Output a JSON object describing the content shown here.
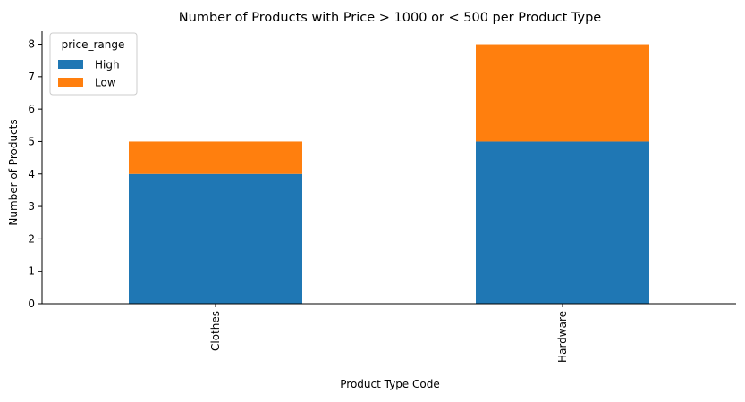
{
  "chart_data": {
    "type": "bar",
    "stacked": true,
    "title": "Number of Products with Price > 1000 or < 500 per Product Type",
    "xlabel": "Product Type Code",
    "ylabel": "Number of Products",
    "categories": [
      "Clothes",
      "Hardware"
    ],
    "series": [
      {
        "name": "High",
        "values": [
          4,
          5
        ],
        "color": "#1f77b4"
      },
      {
        "name": "Low",
        "values": [
          1,
          3
        ],
        "color": "#ff7f0e"
      }
    ],
    "ylim": [
      0,
      8.4
    ],
    "yticks": [
      0,
      1,
      2,
      3,
      4,
      5,
      6,
      7,
      8
    ],
    "legend": {
      "title": "price_range",
      "position": "top-left"
    },
    "grid": false
  }
}
